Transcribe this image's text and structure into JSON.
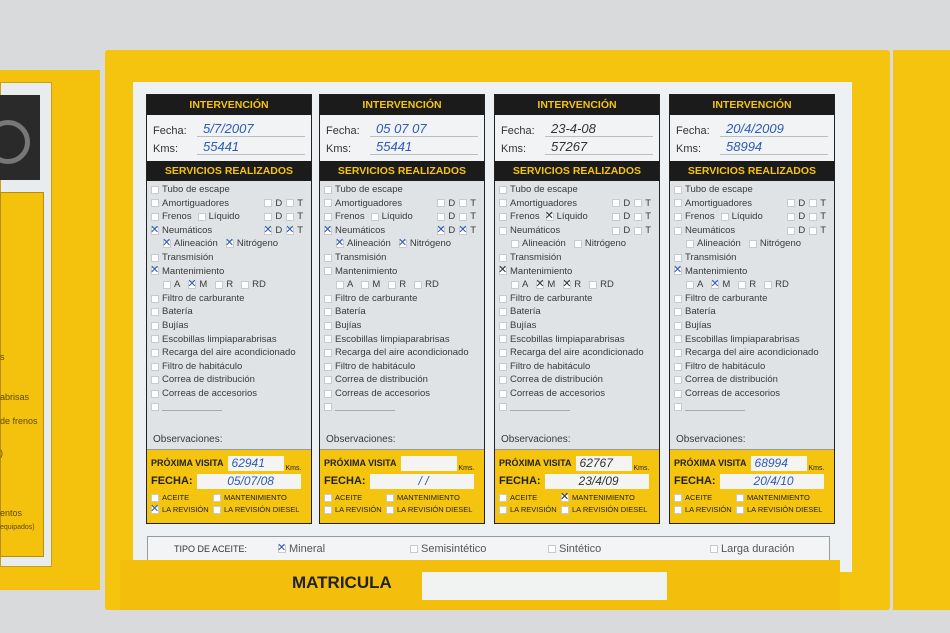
{
  "left_page": {
    "lines": [
      "s",
      "abrisas",
      "de frenos",
      ")",
      "entos",
      "equipados)"
    ]
  },
  "labels": {
    "intervencion": "INTERVENCIÓN",
    "fecha": "Fecha:",
    "kms": "Kms:",
    "servicios": "SERVICIOS REALIZADOS",
    "observaciones": "Observaciones:",
    "proxima_visita": "PRÓXIMA VISITA",
    "kms_short": "Kms.",
    "fecha_caps": "FECHA:",
    "opts": [
      "ACEITE",
      "MANTENIMIENTO",
      "LA REVISIÓN",
      "LA REVISIÓN DIESEL"
    ]
  },
  "services": [
    "Tubo de escape",
    "Amortiguadores",
    "Frenos",
    "Líquido",
    "Neumáticos",
    "Alineación",
    "Nitrógeno",
    "Transmisión",
    "Mantenimiento",
    "Filtro de carburante",
    "Batería",
    "Bujías",
    "Escobillas limpiaparabrisas",
    "Recarga del aire acondicionado",
    "Filtro de habitáculo",
    "Correa de distribución",
    "Correas de accesorios"
  ],
  "sides": [
    "D",
    "T"
  ],
  "maint_levels": [
    "A",
    "M",
    "R",
    "RD"
  ],
  "cards": [
    {
      "fecha": "5/7/2007",
      "kms": "55441",
      "next_kms": "62941",
      "next_fecha": "05/07/08",
      "ink": "#2c5bb8",
      "checked": [
        "Neumáticos",
        "Neumáticos-D",
        "Neumáticos-T",
        "Alineación",
        "Nitrógeno",
        "Mantenimiento",
        "M"
      ],
      "opts_checked": [
        "LA REVISIÓN"
      ]
    },
    {
      "fecha": "05 07 07",
      "kms": "55441",
      "next_kms": "",
      "next_fecha": "/ /",
      "ink": "#2c5bb8",
      "checked": [
        "Neumáticos",
        "Neumáticos-D",
        "Neumáticos-T",
        "Alineación",
        "Nitrógeno"
      ],
      "opts_checked": []
    },
    {
      "fecha": "23-4-08",
      "kms": "57267",
      "next_kms": "62767",
      "next_fecha": "23/4/09",
      "ink": "#333333",
      "checked": [
        "Líquido",
        "Mantenimiento",
        "M",
        "R"
      ],
      "opts_checked": [
        "MANTENIMIENTO"
      ]
    },
    {
      "fecha": "20/4/2009",
      "kms": "58994",
      "next_kms": "68994",
      "next_fecha": "20/4/10",
      "ink": "#2c5bb8",
      "checked": [
        "Mantenimiento",
        "M"
      ],
      "opts_checked": []
    }
  ],
  "tipo_aceite": {
    "label": "TIPO DE ACEITE:",
    "options": [
      {
        "label": "Mineral",
        "checked": true
      },
      {
        "label": "Semisintético",
        "checked": false
      },
      {
        "label": "Sintético",
        "checked": false
      },
      {
        "label": "Larga duración",
        "checked": false
      }
    ]
  },
  "matricula": {
    "label": "MATRICULA",
    "value": ""
  },
  "colors": {
    "yellow": "#f5c40f",
    "header": "#1b1b1b",
    "ink_blue": "#2c5bb8"
  }
}
